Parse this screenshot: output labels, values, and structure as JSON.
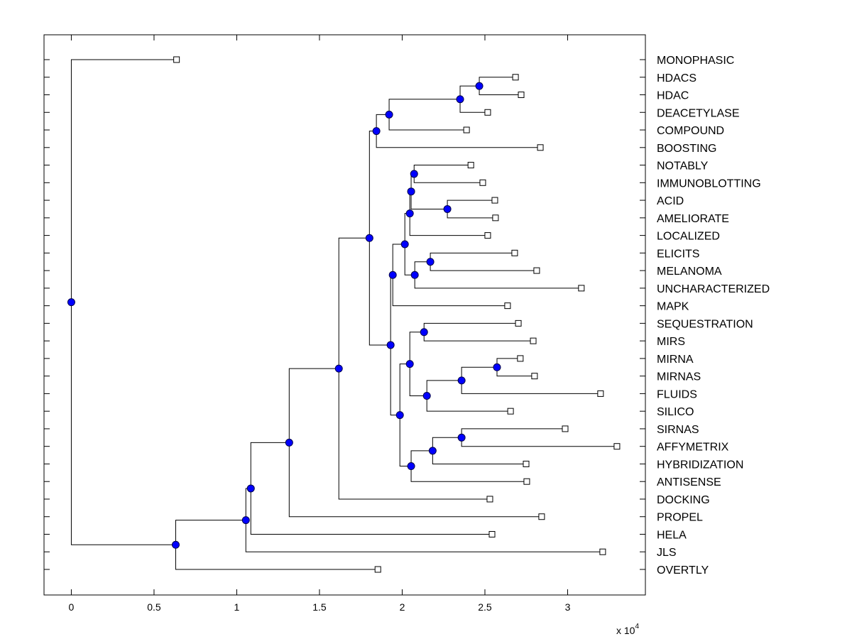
{
  "chart_data": {
    "type": "dendrogram",
    "title": "",
    "xlabel": "",
    "ylabel": "",
    "x_multiplier_label": "x 10",
    "x_multiplier_exponent": "4",
    "xlim": [
      -0.165,
      3.47
    ],
    "xticks": [
      0,
      0.5,
      1,
      1.5,
      2,
      2.5,
      3
    ],
    "xtick_labels": [
      "0",
      "0.5",
      "1",
      "1.5",
      "2",
      "2.5",
      "3"
    ],
    "leaf_label_side": "right",
    "grid": false,
    "node_color": "#0000ff",
    "leaf_marker_color": "#ffffff",
    "leaves": [
      {
        "label": "MONOPHASIC",
        "x": 0.636
      },
      {
        "label": "HDACS",
        "x": 2.685
      },
      {
        "label": "HDAC",
        "x": 2.719
      },
      {
        "label": "DEACETYLASE",
        "x": 2.517
      },
      {
        "label": "COMPOUND",
        "x": 2.389
      },
      {
        "label": "BOOSTING",
        "x": 2.835
      },
      {
        "label": "NOTABLY",
        "x": 2.415
      },
      {
        "label": "IMMUNOBLOTTING",
        "x": 2.487
      },
      {
        "label": "ACID",
        "x": 2.56
      },
      {
        "label": "AMELIORATE",
        "x": 2.564
      },
      {
        "label": "LOCALIZED",
        "x": 2.517
      },
      {
        "label": "ELICITS",
        "x": 2.68
      },
      {
        "label": "MELANOMA",
        "x": 2.813
      },
      {
        "label": "UNCHARACTERIZED",
        "x": 3.083
      },
      {
        "label": "MAPK",
        "x": 2.637
      },
      {
        "label": "SEQUESTRATION",
        "x": 2.702
      },
      {
        "label": "MIRS",
        "x": 2.792
      },
      {
        "label": "MIRNA",
        "x": 2.714
      },
      {
        "label": "MIRNAS",
        "x": 2.8
      },
      {
        "label": "FLUIDS",
        "x": 3.199
      },
      {
        "label": "SILICO",
        "x": 2.655
      },
      {
        "label": "SIRNAS",
        "x": 2.985
      },
      {
        "label": "AFFYMETRIX",
        "x": 3.298
      },
      {
        "label": "HYBRIDIZATION",
        "x": 2.749
      },
      {
        "label": "ANTISENSE",
        "x": 2.753
      },
      {
        "label": "DOCKING",
        "x": 2.53
      },
      {
        "label": "PROPEL",
        "x": 2.843
      },
      {
        "label": "HELA",
        "x": 2.543
      },
      {
        "label": "JLS",
        "x": 3.212
      },
      {
        "label": "OVERTLY",
        "x": 1.853
      }
    ],
    "nodes": [
      {
        "id": "n1",
        "x": 2.466,
        "children": [
          "HDACS",
          "HDAC"
        ]
      },
      {
        "id": "n2",
        "x": 2.35,
        "children": [
          "n1",
          "DEACETYLASE"
        ]
      },
      {
        "id": "n3",
        "x": 1.921,
        "children": [
          "n2",
          "COMPOUND"
        ]
      },
      {
        "id": "n4",
        "x": 1.844,
        "children": [
          "n3",
          "BOOSTING"
        ]
      },
      {
        "id": "n5",
        "x": 2.072,
        "children": [
          "NOTABLY",
          "IMMUNOBLOTTING"
        ]
      },
      {
        "id": "n6",
        "x": 2.273,
        "children": [
          "ACID",
          "AMELIORATE"
        ]
      },
      {
        "id": "n7",
        "x": 2.054,
        "children": [
          "n5",
          "n6"
        ]
      },
      {
        "id": "n8",
        "x": 2.046,
        "children": [
          "n7",
          "LOCALIZED"
        ]
      },
      {
        "id": "n9",
        "x": 2.17,
        "children": [
          "ELICITS",
          "MELANOMA"
        ]
      },
      {
        "id": "n10",
        "x": 2.076,
        "children": [
          "n9",
          "UNCHARACTERIZED"
        ]
      },
      {
        "id": "n11",
        "x": 2.016,
        "children": [
          "n8",
          "n10"
        ]
      },
      {
        "id": "n12",
        "x": 1.943,
        "children": [
          "n11",
          "MAPK"
        ]
      },
      {
        "id": "n13",
        "x": 2.132,
        "children": [
          "SEQUESTRATION",
          "MIRS"
        ]
      },
      {
        "id": "n14",
        "x": 2.573,
        "children": [
          "MIRNA",
          "MIRNAS"
        ]
      },
      {
        "id": "n15",
        "x": 2.359,
        "children": [
          "n14",
          "FLUIDS"
        ]
      },
      {
        "id": "n16",
        "x": 2.149,
        "children": [
          "n15",
          "SILICO"
        ]
      },
      {
        "id": "n17",
        "x": 2.046,
        "children": [
          "n13",
          "n16"
        ]
      },
      {
        "id": "n18",
        "x": 2.359,
        "children": [
          "SIRNAS",
          "AFFYMETRIX"
        ]
      },
      {
        "id": "n19",
        "x": 2.184,
        "children": [
          "n18",
          "HYBRIDIZATION"
        ]
      },
      {
        "id": "n20",
        "x": 2.054,
        "children": [
          "n19",
          "ANTISENSE"
        ]
      },
      {
        "id": "n21",
        "x": 1.986,
        "children": [
          "n17",
          "n20"
        ]
      },
      {
        "id": "n22",
        "x": 1.93,
        "children": [
          "n12",
          "n21"
        ]
      },
      {
        "id": "n23",
        "x": 1.802,
        "children": [
          "n4",
          "n22"
        ]
      },
      {
        "id": "n24",
        "x": 1.617,
        "children": [
          "n23",
          "DOCKING"
        ]
      },
      {
        "id": "n25",
        "x": 1.317,
        "children": [
          "n24",
          "PROPEL"
        ]
      },
      {
        "id": "n26",
        "x": 1.085,
        "children": [
          "n25",
          "HELA"
        ]
      },
      {
        "id": "n27",
        "x": 1.055,
        "children": [
          "n26",
          "JLS"
        ]
      },
      {
        "id": "n28",
        "x": 0.631,
        "children": [
          "n27",
          "OVERTLY"
        ]
      },
      {
        "id": "root",
        "x": 0.0,
        "children": [
          "MONOPHASIC",
          "n28"
        ]
      }
    ]
  }
}
